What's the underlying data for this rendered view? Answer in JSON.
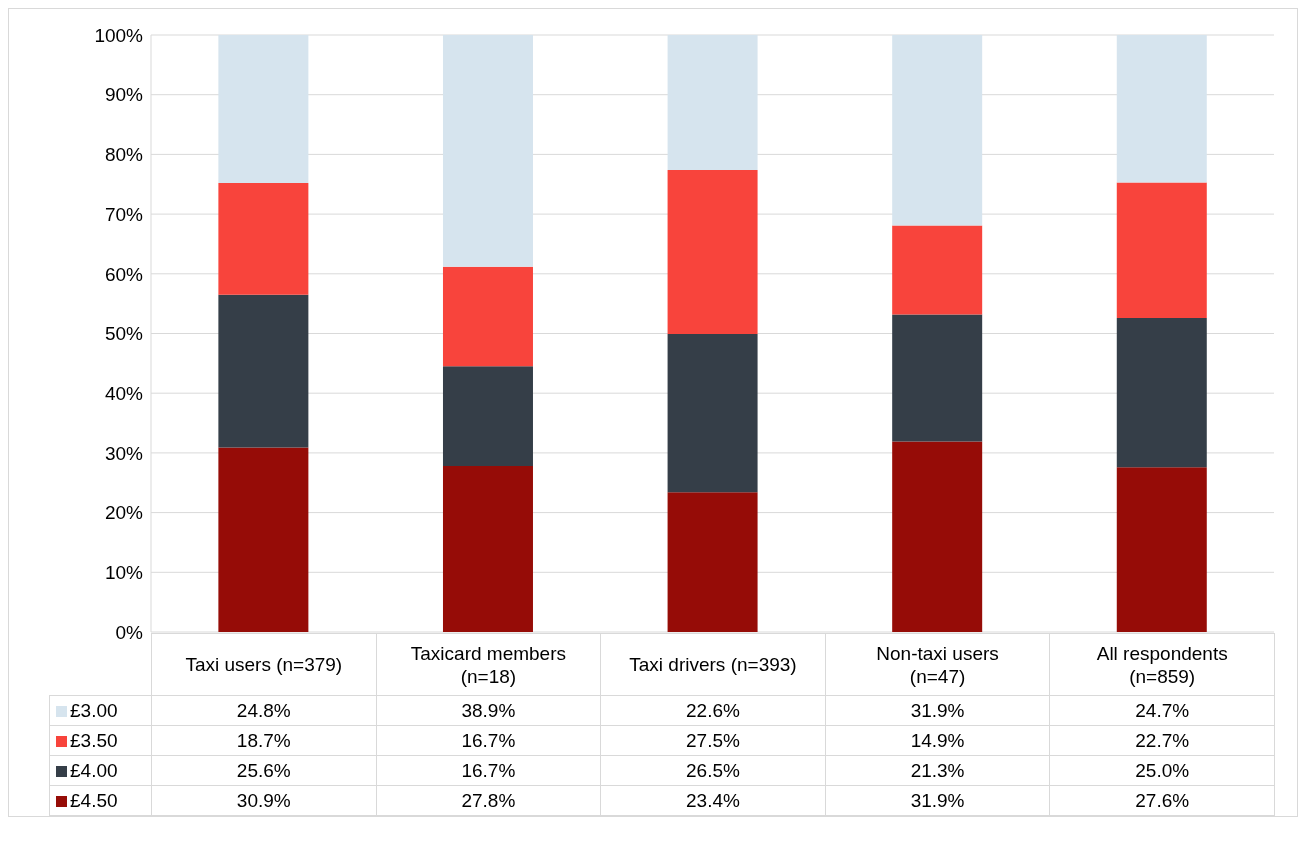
{
  "chart_data": {
    "type": "bar",
    "stacked": true,
    "categories": [
      "Taxi users (n=379)",
      "Taxicard members (n=18)",
      "Taxi drivers (n=393)",
      "Non-taxi users (n=47)",
      "All respondents (n=859)"
    ],
    "series": [
      {
        "name": "£4.50",
        "color": "#960c07",
        "values": [
          30.9,
          27.8,
          23.4,
          31.9,
          27.6
        ],
        "value_labels": [
          "30.9%",
          "27.8%",
          "23.4%",
          "31.9%",
          "27.6%"
        ]
      },
      {
        "name": "£4.00",
        "color": "#353e48",
        "values": [
          25.6,
          16.7,
          26.5,
          21.3,
          25.0
        ],
        "value_labels": [
          "25.6%",
          "16.7%",
          "26.5%",
          "21.3%",
          "25.0%"
        ]
      },
      {
        "name": "£3.50",
        "color": "#f8443c",
        "values": [
          18.7,
          16.7,
          27.5,
          14.9,
          22.7
        ],
        "value_labels": [
          "18.7%",
          "16.7%",
          "27.5%",
          "14.9%",
          "22.7%"
        ]
      },
      {
        "name": "£3.00",
        "color": "#d6e4ee",
        "values": [
          24.8,
          38.9,
          22.6,
          31.9,
          24.7
        ],
        "value_labels": [
          "24.8%",
          "38.9%",
          "22.6%",
          "31.9%",
          "24.7%"
        ]
      }
    ],
    "ylim": [
      0,
      100
    ],
    "yticks": [
      {
        "value": 0,
        "label": "0%"
      },
      {
        "value": 10,
        "label": "10%"
      },
      {
        "value": 20,
        "label": "20%"
      },
      {
        "value": 30,
        "label": "30%"
      },
      {
        "value": 40,
        "label": "40%"
      },
      {
        "value": 50,
        "label": "50%"
      },
      {
        "value": 60,
        "label": "60%"
      },
      {
        "value": 70,
        "label": "70%"
      },
      {
        "value": 80,
        "label": "80%"
      },
      {
        "value": 90,
        "label": "90%"
      },
      {
        "value": 100,
        "label": "100%"
      }
    ],
    "grid": "y",
    "legend": "bottom"
  }
}
